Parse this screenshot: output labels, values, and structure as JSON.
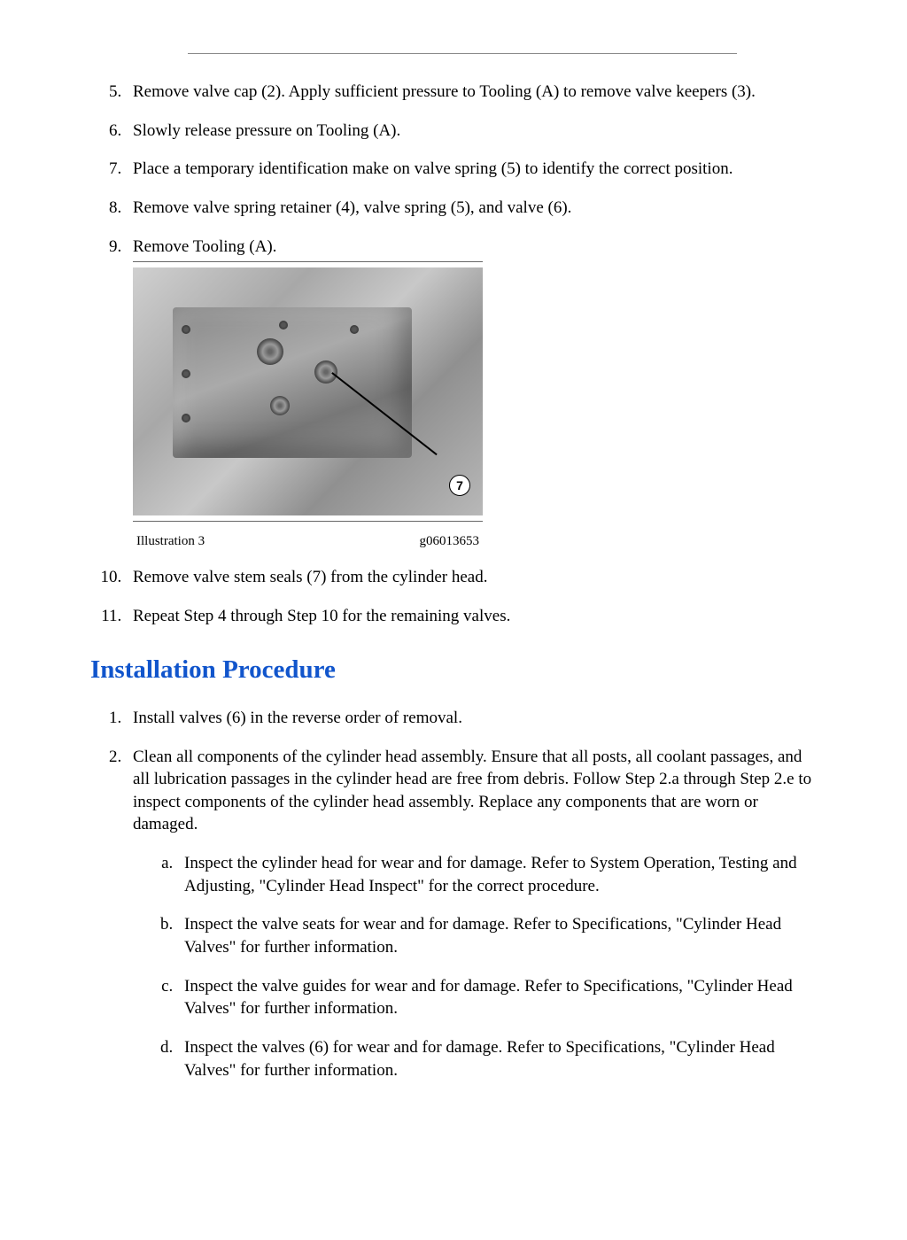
{
  "removal_start": 5,
  "removal_steps": [
    "Remove valve cap (2). Apply sufficient pressure to Tooling (A) to remove valve keepers (3).",
    "Slowly release pressure on Tooling (A).",
    "Place a temporary identification make on valve spring (5) to identify the correct position.",
    "Remove valve spring retainer (4), valve spring (5), and valve (6).",
    "Remove Tooling (A)."
  ],
  "figure": {
    "label_left": "Illustration 3",
    "label_right": "g06013653",
    "callout": "7"
  },
  "removal_steps_after": [
    "Remove valve stem seals (7) from the cylinder head.",
    "Repeat Step 4 through Step 10 for the remaining valves."
  ],
  "heading": "Installation Procedure",
  "install_steps": [
    {
      "text": "Install valves (6) in the reverse order of removal.",
      "sub": []
    },
    {
      "text": "Clean all components of the cylinder head assembly. Ensure that all posts, all coolant passages, and all lubrication passages in the cylinder head are free from debris. Follow Step 2.a through Step 2.e to inspect components of the cylinder head assembly. Replace any components that are worn or damaged.",
      "sub": [
        "Inspect the cylinder head for wear and for damage. Refer to System Operation, Testing and Adjusting, \"Cylinder Head Inspect\" for the correct procedure.",
        "Inspect the valve seats for wear and for damage. Refer to Specifications, \"Cylinder Head Valves\" for further information.",
        "Inspect the valve guides for wear and for damage. Refer to Specifications, \"Cylinder Head Valves\" for further information.",
        "Inspect the valves (6) for wear and for damage. Refer to Specifications, \"Cylinder Head Valves\" for further information."
      ]
    }
  ]
}
